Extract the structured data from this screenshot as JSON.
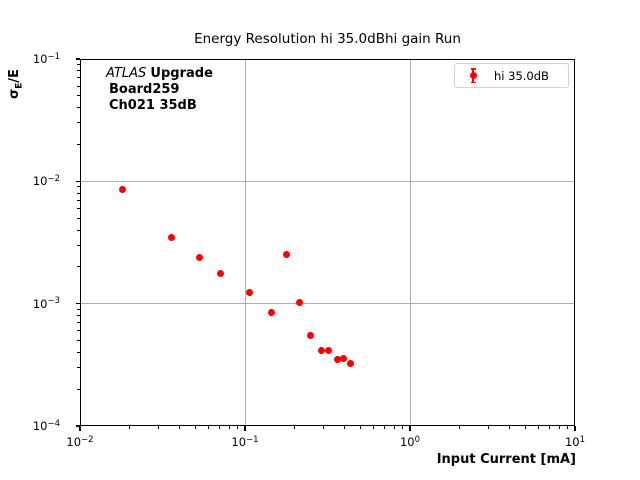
{
  "title": "Energy Resolution hi 35.0dBhi gain Run",
  "x_axis": {
    "label": "Input Current [mA]",
    "base": "10",
    "tick_exponents": [
      -2,
      -1,
      0,
      1
    ]
  },
  "y_axis": {
    "label_sigma": "σ",
    "label_sub": "E",
    "label_rest": "/E",
    "base": "10",
    "tick_exponents": [
      -1,
      -2,
      -3,
      -4
    ]
  },
  "annotation": {
    "experiment": "ATLAS",
    "experiment_suffix": "Upgrade",
    "line2": "Board259",
    "line3": "Ch021 35dB"
  },
  "legend": {
    "entries": [
      {
        "label": "hi 35.0dB",
        "marker": "errorbar-circle",
        "color": "#ff0000"
      }
    ],
    "position": "upper right"
  },
  "colors": {
    "marker": "#ff0000",
    "grid": "#b0b0b0",
    "axis": "#000000",
    "legend_border": "#d2d2d2",
    "background": "#ffffff"
  },
  "chart_data": {
    "type": "scatter",
    "title": "Energy Resolution hi 35.0dBhi gain Run",
    "xlabel": "Input Current [mA]",
    "ylabel": "σE/E",
    "x_scale": "log",
    "y_scale": "log",
    "xlim": [
      0.01,
      10
    ],
    "ylim": [
      0.0001,
      0.1
    ],
    "grid": true,
    "legend_position": "upper right",
    "series": [
      {
        "name": "hi 35.0dB",
        "marker": "circle",
        "color": "#ff0000",
        "x": [
          0.018,
          0.036,
          0.053,
          0.071,
          0.107,
          0.144,
          0.179,
          0.215,
          0.248,
          0.289,
          0.32,
          0.362,
          0.396,
          0.435
        ],
        "y": [
          0.0086,
          0.0035,
          0.0024,
          0.00177,
          0.00124,
          0.00085,
          0.00251,
          0.00102,
          0.00055,
          0.000415,
          0.000418,
          0.000352,
          0.000356,
          0.000322
        ],
        "error_bars": "present but smaller than marker size"
      }
    ]
  }
}
